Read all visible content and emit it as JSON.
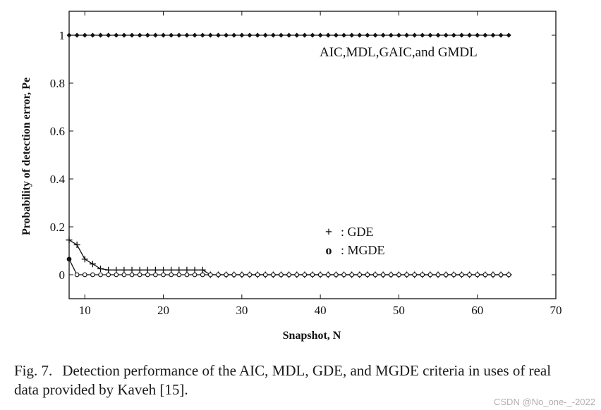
{
  "chart_data": {
    "type": "line",
    "xlabel": "Snapshot, N",
    "ylabel": "Probability of detection error, Pe",
    "xlim": [
      8,
      70
    ],
    "ylim": [
      -0.1,
      1.1
    ],
    "xticks": [
      10,
      20,
      30,
      40,
      50,
      60,
      70
    ],
    "yticks": [
      0,
      0.2,
      0.4,
      0.6,
      0.8,
      1
    ],
    "ytick_labels": [
      "0",
      "0.2",
      "0.4",
      "0.6",
      "0.8",
      "1"
    ],
    "grid": false,
    "series": [
      {
        "name": "AIC,MDL,GAIC,and GMDL",
        "marker": "diamond",
        "x": [
          8,
          9,
          10,
          11,
          12,
          13,
          14,
          15,
          16,
          17,
          18,
          19,
          20,
          21,
          22,
          23,
          24,
          25,
          26,
          27,
          28,
          29,
          30,
          31,
          32,
          33,
          34,
          35,
          36,
          37,
          38,
          39,
          40,
          41,
          42,
          43,
          44,
          45,
          46,
          47,
          48,
          49,
          50,
          51,
          52,
          53,
          54,
          55,
          56,
          57,
          58,
          59,
          60,
          61,
          62,
          63,
          64
        ],
        "y": [
          1,
          1,
          1,
          1,
          1,
          1,
          1,
          1,
          1,
          1,
          1,
          1,
          1,
          1,
          1,
          1,
          1,
          1,
          1,
          1,
          1,
          1,
          1,
          1,
          1,
          1,
          1,
          1,
          1,
          1,
          1,
          1,
          1,
          1,
          1,
          1,
          1,
          1,
          1,
          1,
          1,
          1,
          1,
          1,
          1,
          1,
          1,
          1,
          1,
          1,
          1,
          1,
          1,
          1,
          1,
          1,
          1
        ]
      },
      {
        "name": "GDE",
        "marker": "plus",
        "x": [
          8,
          9,
          10,
          11,
          12,
          13,
          14,
          15,
          16,
          17,
          18,
          19,
          20,
          21,
          22,
          23,
          24,
          25,
          26,
          27,
          28,
          29,
          30,
          31,
          32,
          33,
          34,
          35,
          36,
          37,
          38,
          39,
          40,
          41,
          42,
          43,
          44,
          45,
          46,
          47,
          48,
          49,
          50,
          51,
          52,
          53,
          54,
          55,
          56,
          57,
          58,
          59,
          60,
          61,
          62,
          63,
          64
        ],
        "y": [
          0.145,
          0.125,
          0.065,
          0.045,
          0.025,
          0.02,
          0.02,
          0.02,
          0.02,
          0.02,
          0.02,
          0.02,
          0.02,
          0.02,
          0.02,
          0.02,
          0.02,
          0.02,
          0,
          0,
          0,
          0,
          0,
          0,
          0,
          0,
          0,
          0,
          0,
          0,
          0,
          0,
          0,
          0,
          0,
          0,
          0,
          0,
          0,
          0,
          0,
          0,
          0,
          0,
          0,
          0,
          0,
          0,
          0,
          0,
          0,
          0,
          0,
          0,
          0,
          0,
          0
        ]
      },
      {
        "name": "MGDE",
        "marker": "circle",
        "x": [
          8,
          9,
          10,
          11,
          12,
          13,
          14,
          15,
          16,
          17,
          18,
          19,
          20,
          21,
          22,
          23,
          24,
          25,
          26,
          27,
          28,
          29,
          30,
          31,
          32,
          33,
          34,
          35,
          36,
          37,
          38,
          39,
          40,
          41,
          42,
          43,
          44,
          45,
          46,
          47,
          48,
          49,
          50,
          51,
          52,
          53,
          54,
          55,
          56,
          57,
          58,
          59,
          60,
          61,
          62,
          63,
          64
        ],
        "y": [
          0.065,
          0,
          0,
          0,
          0,
          0,
          0,
          0,
          0,
          0,
          0,
          0,
          0,
          0,
          0,
          0,
          0,
          0,
          0,
          0,
          0,
          0,
          0,
          0,
          0,
          0,
          0,
          0,
          0,
          0,
          0,
          0,
          0,
          0,
          0,
          0,
          0,
          0,
          0,
          0,
          0,
          0,
          0,
          0,
          0,
          0,
          0,
          0,
          0,
          0,
          0,
          0,
          0,
          0,
          0,
          0,
          0
        ]
      }
    ],
    "annotations": {
      "top_series_label": "AIC,MDL,GAIC,and GMDL",
      "legend": [
        {
          "symbol": "+",
          "text": ": GDE"
        },
        {
          "symbol": "o",
          "text": ": MGDE"
        }
      ]
    }
  },
  "caption": {
    "label": "Fig. 7.",
    "text": "Detection performance of the AIC, MDL, GDE, and MGDE criteria in uses of real data provided by Kaveh [15]."
  },
  "watermark": "CSDN @No_one-_-2022"
}
